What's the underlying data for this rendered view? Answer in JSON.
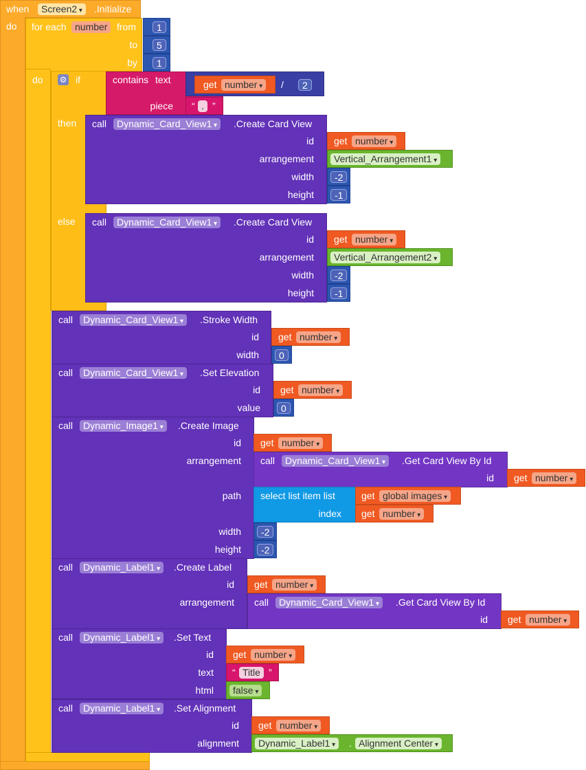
{
  "event": {
    "when": "when",
    "component": "Screen2",
    "event_name": ".Initialize",
    "do": "do"
  },
  "for_each": {
    "label": "for each",
    "var": "number",
    "from": "from",
    "from_val": "1",
    "to": "to",
    "to_val": "5",
    "by": "by",
    "by_val": "1",
    "do": "do"
  },
  "if_block": {
    "if": "if",
    "then": "then",
    "else": "else",
    "contains": "contains",
    "text": "text",
    "piece": "piece",
    "get": "get",
    "number": "number",
    "divide": "/",
    "divisor": "2",
    "quote_open": "“",
    "quote_close": "”",
    "dot": "."
  },
  "common": {
    "call": "call",
    "get": "get",
    "number": "number",
    "id": "id",
    "width": "width",
    "height": "height",
    "arrangement": "arrangement"
  },
  "card_then": {
    "component": "Dynamic_Card_View1",
    "method": ".Create Card View",
    "arrangement_val": "Vertical_Arrangement1",
    "width_val": "-2",
    "height_val": "-1"
  },
  "card_else": {
    "component": "Dynamic_Card_View1",
    "method": ".Create Card View",
    "arrangement_val": "Vertical_Arrangement2",
    "width_val": "-2",
    "height_val": "-1"
  },
  "stroke": {
    "component": "Dynamic_Card_View1",
    "method": ".Stroke Width",
    "width_val": "0"
  },
  "elevation": {
    "component": "Dynamic_Card_View1",
    "method": ".Set Elevation",
    "value": "value",
    "value_val": "0"
  },
  "image": {
    "component": "Dynamic_Image1",
    "method": ".Create Image",
    "inner_component": "Dynamic_Card_View1",
    "inner_method": ".Get Card View By Id",
    "path": "path",
    "select": "select list item  list",
    "global": "global images",
    "index": "index",
    "width_val": "-2",
    "height_val": "-2"
  },
  "label_create": {
    "component": "Dynamic_Label1",
    "method": ".Create Label",
    "inner_component": "Dynamic_Card_View1",
    "inner_method": ".Get Card View By Id"
  },
  "label_text": {
    "component": "Dynamic_Label1",
    "method": ".Set Text",
    "text": "text",
    "text_val": "Title",
    "html": "html",
    "html_val": "false",
    "quote_open": "“",
    "quote_close": "”"
  },
  "label_align": {
    "component": "Dynamic_Label1",
    "method": ".Set Alignment",
    "alignment": "alignment",
    "comp_val": "Dynamic_Label1",
    "dot": ".",
    "align_val": "Alignment Center"
  }
}
